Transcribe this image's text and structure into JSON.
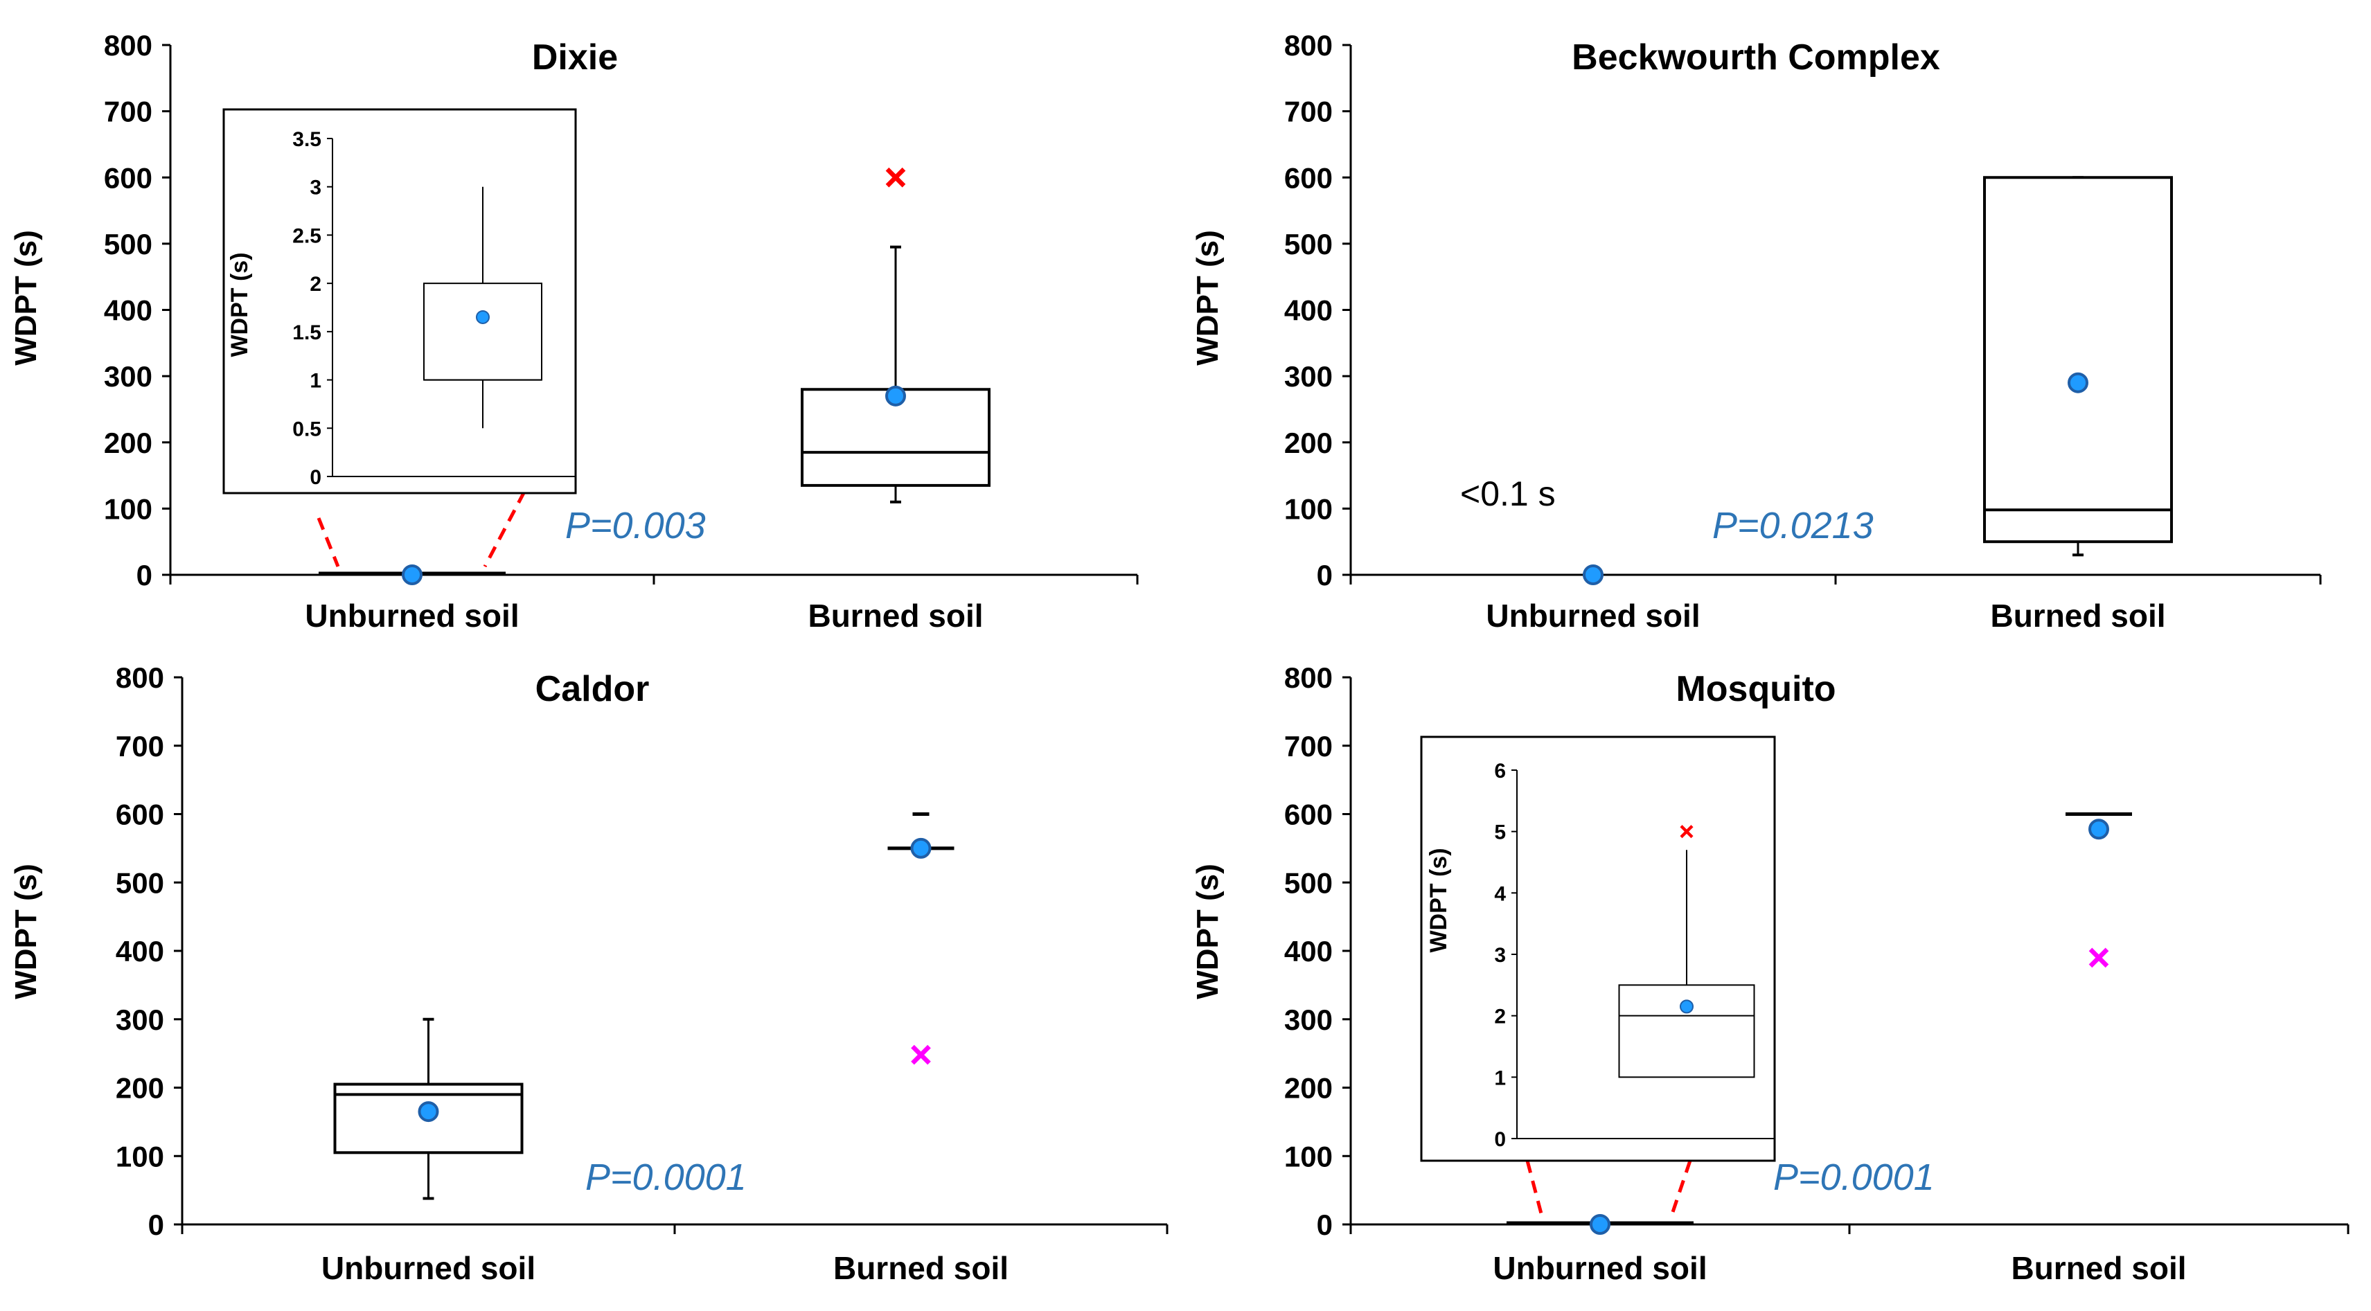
{
  "figure": {
    "y_label": "WDPT (s)",
    "category_labels": [
      "Unburned soil",
      "Burned soil"
    ]
  },
  "colors": {
    "mean_marker": "#1f9bff",
    "mean_edge": "#1f5fa8",
    "outlier_red": "#ff0000",
    "outlier_magenta": "#ff00ff",
    "inset_line": "#ff0000",
    "p_value": "#2e75b6"
  },
  "chart_data": [
    {
      "id": "dixie",
      "type": "box",
      "title": "Dixie",
      "categories": [
        "Unburned soil",
        "Burned soil"
      ],
      "ylabel": "WDPT (s)",
      "ylim": [
        0,
        800
      ],
      "yticks": [
        0,
        100,
        200,
        300,
        400,
        500,
        600,
        700,
        800
      ],
      "p_value": "P=0.003",
      "boxes": [
        {
          "category": "Unburned soil",
          "min": 0,
          "q1": 0,
          "median": 0,
          "q3": 0,
          "max": 0,
          "mean": 0,
          "flat": true
        },
        {
          "category": "Burned soil",
          "min": 110,
          "q1": 135,
          "median": 185,
          "q3": 280,
          "max": 495,
          "mean": 270,
          "outliers": [
            {
              "value": 600,
              "color": "red"
            }
          ]
        }
      ],
      "inset": {
        "ylabel": "WDPT (s)",
        "ylim": [
          0,
          3.5
        ],
        "yticks": [
          "0",
          "0.5",
          "1",
          "1.5",
          "2",
          "2.5",
          "3",
          "3.5"
        ],
        "box": {
          "min": 0.5,
          "q1": 1,
          "median": 1,
          "q3": 2,
          "max": 3,
          "mean": 1.65
        }
      }
    },
    {
      "id": "beckwourth",
      "type": "box",
      "title": "Beckwourth Complex",
      "categories": [
        "Unburned soil",
        "Burned soil"
      ],
      "ylabel": "WDPT (s)",
      "ylim": [
        0,
        800
      ],
      "yticks": [
        0,
        100,
        200,
        300,
        400,
        500,
        600,
        700,
        800
      ],
      "p_value": "P=0.0213",
      "annotation": "<0.1 s",
      "boxes": [
        {
          "category": "Unburned soil",
          "mean": 0,
          "only_mean": true
        },
        {
          "category": "Burned soil",
          "min": 30,
          "q1": 50,
          "median": 98,
          "q3": 600,
          "max": 600,
          "mean": 290
        }
      ]
    },
    {
      "id": "caldor",
      "type": "box",
      "title": "Caldor",
      "categories": [
        "Unburned soil",
        "Burned soil"
      ],
      "ylabel": "WDPT (s)",
      "ylim": [
        0,
        800
      ],
      "yticks": [
        0,
        100,
        200,
        300,
        400,
        500,
        600,
        700,
        800
      ],
      "p_value": "P=0.0001",
      "boxes": [
        {
          "category": "Unburned soil",
          "min": 38,
          "q1": 105,
          "median": 190,
          "q3": 205,
          "max": 300,
          "mean": 165
        },
        {
          "category": "Burned soil",
          "min": 550,
          "q1": 550,
          "median": 550,
          "q3": 550,
          "max": 600,
          "mean": 550,
          "collapsed": true,
          "outliers": [
            {
              "value": 248,
              "color": "magenta"
            }
          ]
        }
      ]
    },
    {
      "id": "mosquito",
      "type": "box",
      "title": "Mosquito",
      "categories": [
        "Unburned soil",
        "Burned soil"
      ],
      "ylabel": "WDPT (s)",
      "ylim": [
        0,
        800
      ],
      "yticks": [
        0,
        100,
        200,
        300,
        400,
        500,
        600,
        700,
        800
      ],
      "p_value": "P=0.0001",
      "boxes": [
        {
          "category": "Unburned soil",
          "min": 0,
          "q1": 0,
          "median": 0,
          "q3": 0,
          "max": 0,
          "mean": 0,
          "flat": true
        },
        {
          "category": "Burned soil",
          "min": 600,
          "q1": 600,
          "median": 600,
          "q3": 600,
          "max": 600,
          "mean": 578,
          "collapsed": true,
          "outliers": [
            {
              "value": 390,
              "color": "magenta"
            }
          ]
        }
      ],
      "inset": {
        "ylabel": "WDPT (s)",
        "ylim": [
          0,
          6
        ],
        "yticks": [
          "0",
          "1",
          "2",
          "3",
          "4",
          "5",
          "6"
        ],
        "box": {
          "min": 1,
          "q1": 1,
          "median": 2,
          "q3": 2.5,
          "max": 4.7,
          "mean": 2.15,
          "outliers": [
            {
              "value": 5,
              "color": "red"
            }
          ]
        }
      }
    }
  ]
}
